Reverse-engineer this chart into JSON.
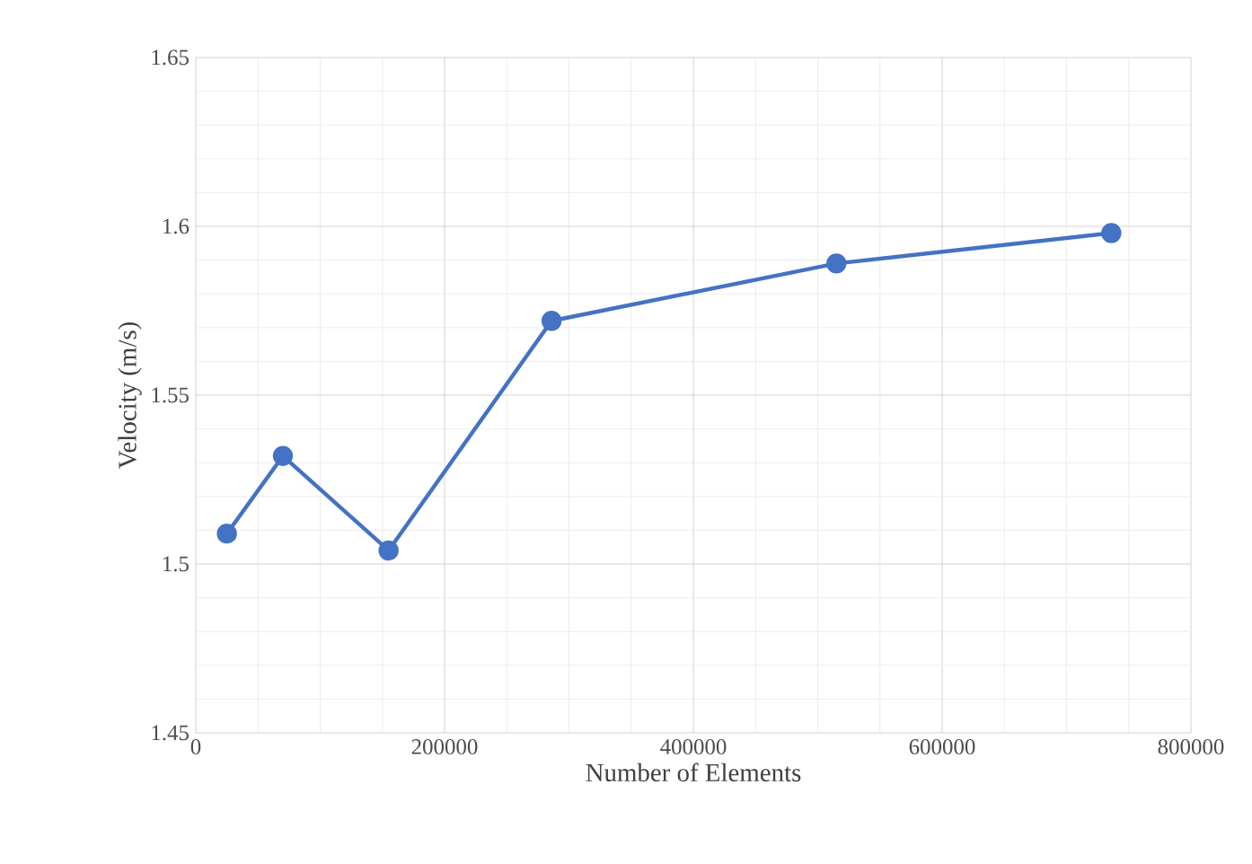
{
  "chart_data": {
    "type": "line",
    "xlabel": "Number of Elements",
    "ylabel": "Velocity (m/s)",
    "x": [
      25000,
      70000,
      155000,
      286000,
      515000,
      736000
    ],
    "series": [
      {
        "color": "#4472c4",
        "values": [
          1.509,
          1.532,
          1.504,
          1.572,
          1.589,
          1.598
        ]
      }
    ],
    "xlim": [
      0,
      800000
    ],
    "xticks": [
      0,
      200000,
      400000,
      600000,
      800000
    ],
    "ylim": [
      1.45,
      1.65
    ],
    "yticks": [
      1.45,
      1.5,
      1.55,
      1.6,
      1.65
    ],
    "grid": true,
    "marker": "circle",
    "line_style": "solid"
  }
}
